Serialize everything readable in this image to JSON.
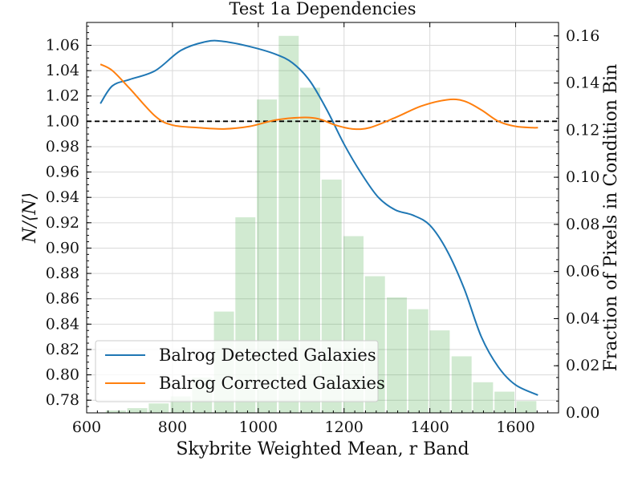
{
  "chart_data": {
    "type": "line",
    "title": "Test 1a Dependencies",
    "xlabel": "Skybrite Weighted Mean, r Band",
    "ylabel_left": "N/⟨N⟩",
    "ylabel_right": "Fraction of Pixels in Condition Bin",
    "xlim": [
      600,
      1700
    ],
    "ylim_left": [
      0.77,
      1.078
    ],
    "ylim_right": [
      0.0,
      0.1657
    ],
    "x_ticks": [
      600,
      800,
      1000,
      1200,
      1400,
      1600
    ],
    "y_left_ticks": [
      0.78,
      0.8,
      0.82,
      0.84,
      0.86,
      0.88,
      0.9,
      0.92,
      0.94,
      0.96,
      0.98,
      1.0,
      1.02,
      1.04,
      1.06
    ],
    "y_right_ticks": [
      0.0,
      0.02,
      0.04,
      0.06,
      0.08,
      0.1,
      0.12,
      0.14,
      0.16
    ],
    "grid": true,
    "legend_position": "bottom-left",
    "reference_line": {
      "y": 1.0,
      "style": "dashed",
      "color": "#000000"
    },
    "histogram": {
      "axis": "right",
      "color": "#2ca02c",
      "bin_width": 50.4,
      "bins": [
        {
          "x": 668,
          "value": 0.001
        },
        {
          "x": 718,
          "value": 0.002
        },
        {
          "x": 768,
          "value": 0.004
        },
        {
          "x": 819,
          "value": 0.007
        },
        {
          "x": 869,
          "value": 0.015
        },
        {
          "x": 920,
          "value": 0.043
        },
        {
          "x": 970,
          "value": 0.083
        },
        {
          "x": 1020,
          "value": 0.133
        },
        {
          "x": 1071,
          "value": 0.16
        },
        {
          "x": 1121,
          "value": 0.138
        },
        {
          "x": 1171,
          "value": 0.099
        },
        {
          "x": 1222,
          "value": 0.075
        },
        {
          "x": 1272,
          "value": 0.058
        },
        {
          "x": 1323,
          "value": 0.049
        },
        {
          "x": 1373,
          "value": 0.044
        },
        {
          "x": 1423,
          "value": 0.035
        },
        {
          "x": 1474,
          "value": 0.024
        },
        {
          "x": 1524,
          "value": 0.013
        },
        {
          "x": 1574,
          "value": 0.009
        },
        {
          "x": 1625,
          "value": 0.005
        }
      ]
    },
    "series": [
      {
        "name": "Balrog Detected Galaxies",
        "color": "#1f77b4",
        "axis": "left",
        "x": [
          632,
          660,
          700,
          760,
          820,
          880,
          920,
          980,
          1040,
          1080,
          1120,
          1160,
          1200,
          1240,
          1280,
          1320,
          1360,
          1400,
          1440,
          1480,
          1520,
          1560,
          1600,
          1652
        ],
        "y": [
          1.014,
          1.028,
          1.033,
          1.04,
          1.056,
          1.063,
          1.063,
          1.059,
          1.053,
          1.046,
          1.032,
          1.009,
          0.982,
          0.959,
          0.94,
          0.93,
          0.926,
          0.918,
          0.898,
          0.868,
          0.83,
          0.806,
          0.792,
          0.784
        ]
      },
      {
        "name": "Balrog Corrected Galaxies",
        "color": "#ff7f0e",
        "axis": "left",
        "x": [
          632,
          660,
          700,
          760,
          800,
          860,
          920,
          980,
          1040,
          1100,
          1140,
          1180,
          1220,
          1260,
          1320,
          1380,
          1440,
          1480,
          1520,
          1560,
          1600,
          1640,
          1652
        ],
        "y": [
          1.045,
          1.04,
          1.026,
          1.004,
          0.997,
          0.995,
          0.994,
          0.996,
          1.001,
          1.003,
          1.002,
          0.997,
          0.994,
          0.995,
          1.003,
          1.012,
          1.017,
          1.016,
          1.009,
          1.0,
          0.996,
          0.995,
          0.995
        ]
      }
    ]
  }
}
